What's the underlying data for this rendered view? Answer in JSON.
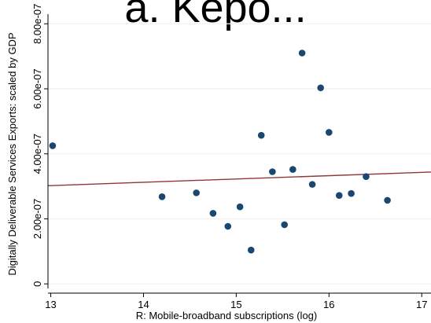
{
  "chart_data": {
    "type": "scatter",
    "title": "a. Kepo...",
    "xlabel": "R: Mobile-broadband subscriptions (log)",
    "ylabel": "Digitally Deliverable Services Exports: scaled by GDP",
    "xlim": [
      12.97,
      17.1
    ],
    "ylim": [
      -1.4e-08,
      8.2e-07
    ],
    "x_ticks": [
      {
        "value": 13,
        "label": "13"
      },
      {
        "value": 14,
        "label": "14"
      },
      {
        "value": 15,
        "label": "15"
      },
      {
        "value": 16,
        "label": "16"
      },
      {
        "value": 17,
        "label": "17"
      }
    ],
    "y_ticks": [
      {
        "value": 0,
        "label": "0"
      },
      {
        "value": 2e-07,
        "label": "2.00e-07"
      },
      {
        "value": 4e-07,
        "label": "4.00e-07"
      },
      {
        "value": 6e-07,
        "label": "6.00e-07"
      },
      {
        "value": 8e-07,
        "label": "8.00e-07"
      }
    ],
    "grid": true,
    "points": [
      {
        "x": 13.02,
        "y": 4.25e-07
      },
      {
        "x": 14.2,
        "y": 2.68e-07
      },
      {
        "x": 14.57,
        "y": 2.8e-07
      },
      {
        "x": 14.75,
        "y": 2.17e-07
      },
      {
        "x": 14.91,
        "y": 1.77e-07
      },
      {
        "x": 15.04,
        "y": 2.37e-07
      },
      {
        "x": 15.16,
        "y": 1.04e-07
      },
      {
        "x": 15.27,
        "y": 4.57e-07
      },
      {
        "x": 15.39,
        "y": 3.45e-07
      },
      {
        "x": 15.52,
        "y": 1.82e-07
      },
      {
        "x": 15.61,
        "y": 3.52e-07
      },
      {
        "x": 15.71,
        "y": 7.1e-07
      },
      {
        "x": 15.82,
        "y": 3.06e-07
      },
      {
        "x": 15.91,
        "y": 6.03e-07
      },
      {
        "x": 16.0,
        "y": 4.66e-07
      },
      {
        "x": 16.11,
        "y": 2.72e-07
      },
      {
        "x": 16.24,
        "y": 2.78e-07
      },
      {
        "x": 16.4,
        "y": 3.3e-07
      },
      {
        "x": 16.63,
        "y": 2.57e-07
      }
    ],
    "fit_line": {
      "x": [
        12.97,
        17.1
      ],
      "y": [
        3.02e-07,
        3.44e-07
      ]
    },
    "colors": {
      "points": "#1a476f",
      "fit_line": "#90353b",
      "grid": "#eaf2f3",
      "axis": "#000000"
    }
  }
}
